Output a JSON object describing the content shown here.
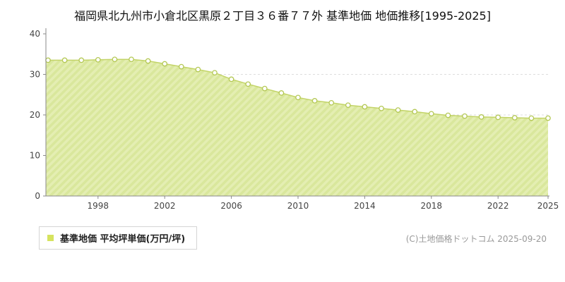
{
  "chart_data": {
    "type": "area",
    "title": "福岡県北九州市小倉北区黒原２丁目３６番７７外 基準地価 地価推移[1995-2025]",
    "series_name": "基準地価 平均坪単価(万円/坪)",
    "x": [
      1995,
      1996,
      1997,
      1998,
      1999,
      2000,
      2001,
      2002,
      2003,
      2004,
      2005,
      2006,
      2007,
      2008,
      2009,
      2010,
      2011,
      2012,
      2013,
      2014,
      2015,
      2016,
      2017,
      2018,
      2019,
      2020,
      2021,
      2022,
      2023,
      2024,
      2025
    ],
    "values": [
      33.5,
      33.5,
      33.5,
      33.6,
      33.7,
      33.7,
      33.3,
      32.6,
      31.9,
      31.2,
      30.4,
      28.8,
      27.6,
      26.5,
      25.4,
      24.3,
      23.5,
      23.0,
      22.4,
      22.0,
      21.6,
      21.2,
      20.8,
      20.3,
      19.9,
      19.7,
      19.5,
      19.4,
      19.3,
      19.2,
      19.2
    ],
    "ylim": [
      0,
      40
    ],
    "yticks": [
      0,
      10,
      20,
      30,
      40
    ],
    "xticks": [
      1998,
      2002,
      2006,
      2010,
      2014,
      2018,
      2022,
      2025
    ],
    "grid": true,
    "legend_position": "bottom-left",
    "xlabel": "",
    "ylabel": "",
    "colors": {
      "area_fill_base": "#e4eeb2",
      "area_fill_stripe": "#d9e79c",
      "line": "#c3d468",
      "marker_fill": "#ffffff",
      "marker_stroke": "#b4c854",
      "axis": "#8a8a8a",
      "tick_label": "#444444",
      "gridline": "#dddddd",
      "legend_swatch": "#d6e35f"
    }
  },
  "legend": {
    "label": "基準地価 平均坪単価(万円/坪)"
  },
  "footer": {
    "copyright": "(C)土地価格ドットコム 2025-09-20"
  }
}
